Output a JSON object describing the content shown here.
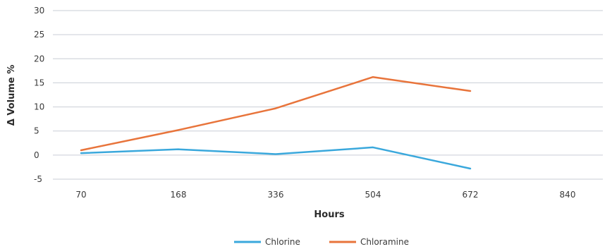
{
  "chart_data": {
    "type": "line",
    "categories": [
      "70",
      "168",
      "336",
      "504",
      "672",
      "840"
    ],
    "series": [
      {
        "name": "Chlorine",
        "color": "#3aa8dc",
        "values": [
          0.4,
          1.2,
          0.2,
          1.6,
          -2.8,
          null
        ]
      },
      {
        "name": "Chloramine",
        "color": "#e8743b",
        "values": [
          1.0,
          5.2,
          9.7,
          16.2,
          13.3,
          null
        ]
      }
    ],
    "xlabel": "Hours",
    "ylabel": "Δ Volume %",
    "ylim": [
      -5,
      30
    ],
    "yticks": [
      -5,
      0,
      5,
      10,
      15,
      20,
      25,
      30
    ],
    "grid": true,
    "legend": "bottom-center"
  }
}
